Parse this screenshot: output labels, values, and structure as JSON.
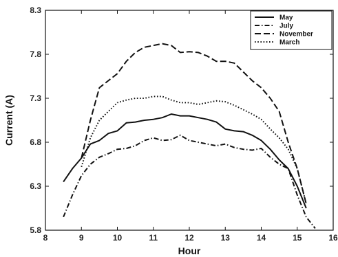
{
  "chart_data": {
    "type": "line",
    "title": "",
    "xlabel": "Hour",
    "ylabel": "Current (A)",
    "xlim": [
      8,
      16
    ],
    "ylim": [
      5.8,
      8.3
    ],
    "xticks": [
      "8",
      "9",
      "10",
      "11",
      "12",
      "13",
      "14",
      "15",
      "16"
    ],
    "yticks": [
      "5.8",
      "6.3",
      "6.8",
      "7.3",
      "7.8",
      "8.3"
    ],
    "grid": false,
    "legend_position": "top-right",
    "series": [
      {
        "name": "May",
        "dash": "solid",
        "x": [
          8.5,
          8.75,
          9.0,
          9.25,
          9.5,
          9.75,
          10.0,
          10.25,
          10.5,
          10.75,
          11.0,
          11.25,
          11.5,
          11.75,
          12.0,
          12.25,
          12.5,
          12.75,
          13.0,
          13.25,
          13.5,
          13.75,
          14.0,
          14.25,
          14.5,
          14.75,
          15.0,
          15.25
        ],
        "y": [
          6.35,
          6.5,
          6.62,
          6.78,
          6.82,
          6.9,
          6.93,
          7.02,
          7.03,
          7.05,
          7.06,
          7.08,
          7.12,
          7.1,
          7.1,
          7.08,
          7.06,
          7.03,
          6.95,
          6.93,
          6.92,
          6.88,
          6.82,
          6.72,
          6.6,
          6.5,
          6.3,
          6.05
        ]
      },
      {
        "name": "July",
        "dash": "dashdot",
        "x": [
          8.5,
          8.75,
          9.0,
          9.25,
          9.5,
          9.75,
          10.0,
          10.25,
          10.5,
          10.75,
          11.0,
          11.25,
          11.5,
          11.75,
          12.0,
          12.25,
          12.5,
          12.75,
          13.0,
          13.25,
          13.5,
          13.75,
          14.0,
          14.25,
          14.5,
          14.75,
          15.0,
          15.25,
          15.5
        ],
        "y": [
          5.95,
          6.2,
          6.42,
          6.55,
          6.63,
          6.67,
          6.72,
          6.73,
          6.76,
          6.82,
          6.85,
          6.82,
          6.83,
          6.88,
          6.82,
          6.8,
          6.78,
          6.76,
          6.78,
          6.74,
          6.72,
          6.71,
          6.73,
          6.63,
          6.55,
          6.5,
          6.2,
          5.95,
          5.82
        ]
      },
      {
        "name": "November",
        "dash": "dashed",
        "x": [
          9.0,
          9.25,
          9.5,
          9.75,
          10.0,
          10.25,
          10.5,
          10.75,
          11.0,
          11.25,
          11.5,
          11.75,
          12.0,
          12.25,
          12.5,
          12.75,
          13.0,
          13.25,
          13.5,
          13.75,
          14.0,
          14.25,
          14.5,
          14.75,
          15.0,
          15.25
        ],
        "y": [
          6.62,
          7.05,
          7.42,
          7.5,
          7.58,
          7.72,
          7.82,
          7.88,
          7.9,
          7.92,
          7.9,
          7.82,
          7.83,
          7.82,
          7.78,
          7.72,
          7.72,
          7.7,
          7.6,
          7.5,
          7.42,
          7.3,
          7.15,
          6.8,
          6.5,
          6.1
        ]
      },
      {
        "name": "March",
        "dash": "dotted",
        "x": [
          9.0,
          9.25,
          9.5,
          9.75,
          10.0,
          10.25,
          10.5,
          10.75,
          11.0,
          11.25,
          11.5,
          11.75,
          12.0,
          12.25,
          12.5,
          12.75,
          13.0,
          13.25,
          13.5,
          13.75,
          14.0,
          14.25,
          14.5,
          14.75,
          15.0,
          15.25
        ],
        "y": [
          6.52,
          6.85,
          7.05,
          7.15,
          7.25,
          7.28,
          7.3,
          7.3,
          7.32,
          7.32,
          7.28,
          7.25,
          7.25,
          7.23,
          7.25,
          7.27,
          7.26,
          7.22,
          7.17,
          7.12,
          7.06,
          6.95,
          6.85,
          6.72,
          6.5,
          6.1
        ]
      }
    ]
  }
}
